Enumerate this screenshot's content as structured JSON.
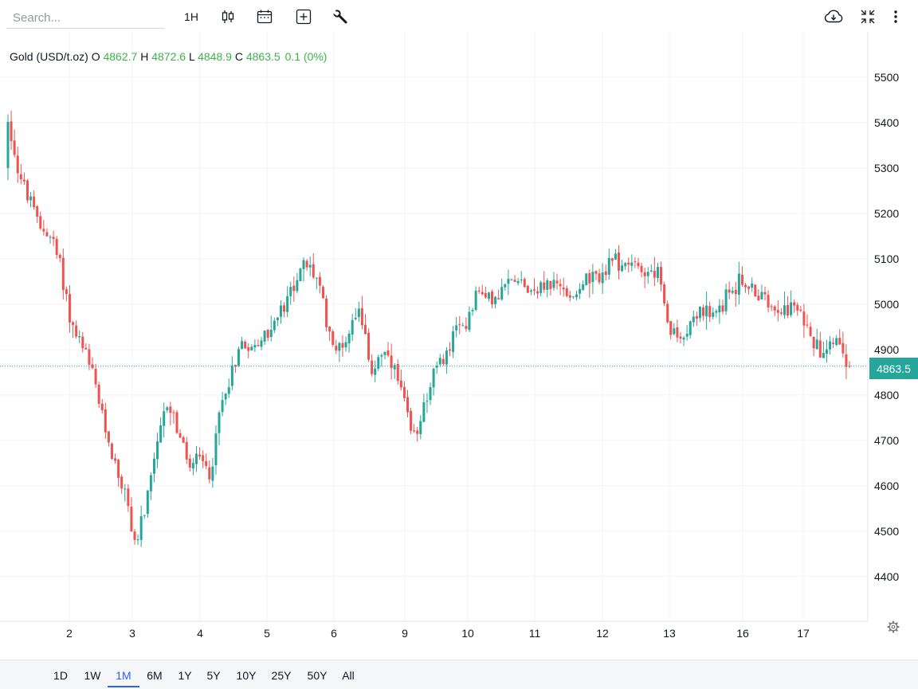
{
  "toolbar": {
    "search_placeholder": "Search...",
    "interval_label": "1H",
    "icons": [
      "candles-icon",
      "calendar-icon",
      "add-indicator-icon",
      "wrench-icon",
      "cloud-download-icon",
      "fullscreen-icon",
      "more-vertical-icon"
    ]
  },
  "legend": {
    "symbol": "Gold (USD/t.oz)",
    "o_label": "O",
    "o_value": "4862.7",
    "h_label": "H",
    "h_value": "4872.6",
    "l_label": "L",
    "l_value": "4848.9",
    "c_label": "C",
    "c_value": "4863.5",
    "change": "0.1 (0%)"
  },
  "price_tag": "4863.5",
  "ranges": [
    "1D",
    "1W",
    "1M",
    "6M",
    "1Y",
    "5Y",
    "10Y",
    "25Y",
    "50Y",
    "All"
  ],
  "active_range": "1M",
  "colors": {
    "up": "#26a69a",
    "down": "#ef5350",
    "legend_value": "#3cb44b",
    "accent": "#2962ff"
  },
  "chart_data": {
    "type": "candlestick",
    "ylim": [
      4300,
      5580
    ],
    "y_ticks": [
      4400,
      4500,
      4600,
      4700,
      4800,
      4900,
      5000,
      5100,
      5200,
      5300,
      5400,
      5500
    ],
    "x_ticks": [
      "2",
      "3",
      "4",
      "5",
      "6",
      "9",
      "10",
      "11",
      "12",
      "13",
      "16",
      "17"
    ],
    "last_price": 4863.5,
    "path": [
      [
        0,
        5410
      ],
      [
        1,
        5290
      ],
      [
        2,
        5230
      ],
      [
        3,
        5170
      ],
      [
        4,
        5150
      ],
      [
        5,
        5080
      ],
      [
        6,
        4950
      ],
      [
        7,
        4900
      ],
      [
        8,
        4840
      ],
      [
        9,
        4740
      ],
      [
        10,
        4650
      ],
      [
        11,
        4580
      ],
      [
        12,
        4470
      ],
      [
        13,
        4560
      ],
      [
        14,
        4680
      ],
      [
        15,
        4790
      ],
      [
        16,
        4720
      ],
      [
        17,
        4640
      ],
      [
        18,
        4660
      ],
      [
        19,
        4620
      ],
      [
        20,
        4780
      ],
      [
        21,
        4850
      ],
      [
        22,
        4920
      ],
      [
        23,
        4900
      ],
      [
        24,
        4930
      ],
      [
        25,
        4960
      ],
      [
        26,
        4990
      ],
      [
        27,
        5060
      ],
      [
        28,
        5085
      ],
      [
        29,
        5060
      ],
      [
        30,
        4950
      ],
      [
        31,
        4890
      ],
      [
        32,
        4940
      ],
      [
        33,
        5010
      ],
      [
        34,
        4840
      ],
      [
        35,
        4900
      ],
      [
        36,
        4860
      ],
      [
        37,
        4800
      ],
      [
        38,
        4700
      ],
      [
        39,
        4780
      ],
      [
        40,
        4850
      ],
      [
        41,
        4880
      ],
      [
        42,
        4940
      ],
      [
        43,
        4960
      ],
      [
        44,
        5030
      ],
      [
        45,
        5010
      ],
      [
        46,
        5010
      ],
      [
        47,
        5050
      ],
      [
        48,
        5060
      ],
      [
        49,
        5030
      ],
      [
        50,
        5040
      ],
      [
        51,
        5050
      ],
      [
        52,
        5030
      ],
      [
        53,
        5020
      ],
      [
        54,
        5050
      ],
      [
        55,
        5050
      ],
      [
        56,
        5070
      ],
      [
        57,
        5100
      ],
      [
        58,
        5080
      ],
      [
        59,
        5090
      ],
      [
        60,
        5070
      ],
      [
        61,
        5075
      ],
      [
        62,
        4940
      ],
      [
        63,
        4920
      ],
      [
        64,
        4960
      ],
      [
        65,
        4990
      ],
      [
        66,
        4960
      ],
      [
        67,
        5000
      ],
      [
        68,
        5040
      ],
      [
        69,
        5050
      ],
      [
        70,
        5030
      ],
      [
        71,
        5010
      ],
      [
        72,
        5000
      ],
      [
        73,
        4990
      ],
      [
        74,
        4990
      ],
      [
        75,
        4960
      ],
      [
        76,
        4900
      ],
      [
        77,
        4920
      ],
      [
        78,
        4930
      ],
      [
        79,
        4863.5
      ]
    ]
  }
}
